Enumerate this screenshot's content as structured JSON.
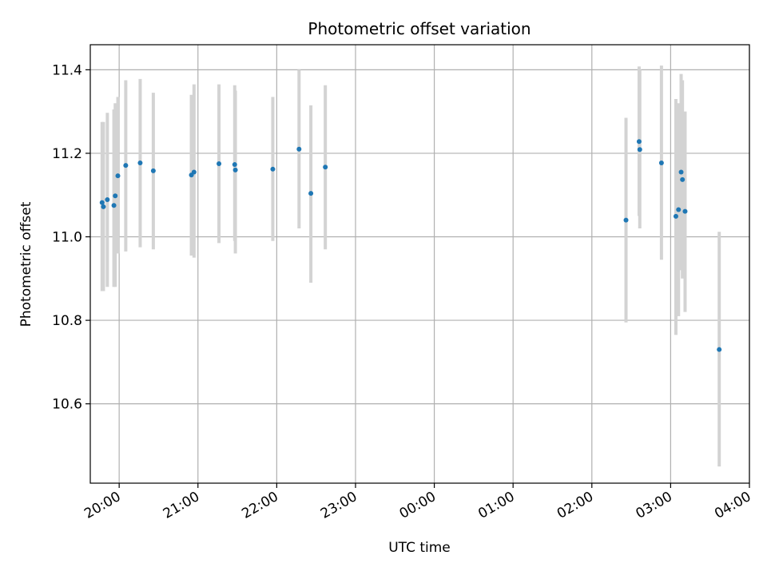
{
  "chart_data": {
    "type": "scatter",
    "title": "Photometric offset variation",
    "xlabel": "UTC time",
    "ylabel": "Photometric offset",
    "xlim": [
      "2024-01-01T19:38:00",
      "2024-01-02T04:00:00"
    ],
    "ylim": [
      10.41,
      11.46
    ],
    "x_ticks": [
      {
        "t": "2024-01-01T20:00:00",
        "label": "20:00"
      },
      {
        "t": "2024-01-01T21:00:00",
        "label": "21:00"
      },
      {
        "t": "2024-01-01T22:00:00",
        "label": "22:00"
      },
      {
        "t": "2024-01-01T23:00:00",
        "label": "23:00"
      },
      {
        "t": "2024-01-02T00:00:00",
        "label": "00:00"
      },
      {
        "t": "2024-01-02T01:00:00",
        "label": "01:00"
      },
      {
        "t": "2024-01-02T02:00:00",
        "label": "02:00"
      },
      {
        "t": "2024-01-02T03:00:00",
        "label": "03:00"
      },
      {
        "t": "2024-01-02T04:00:00",
        "label": "04:00"
      }
    ],
    "y_ticks": [
      {
        "v": 10.6,
        "label": "10.6"
      },
      {
        "v": 10.8,
        "label": "10.8"
      },
      {
        "v": 11.0,
        "label": "11.0"
      },
      {
        "v": 11.2,
        "label": "11.2"
      },
      {
        "v": 11.4,
        "label": "11.4"
      }
    ],
    "grid": true,
    "marker_color": "#1f77b4",
    "errorbar_color": "#d3d3d3",
    "points": [
      {
        "t": "2024-01-01T19:47:00",
        "y": 11.082,
        "low": 10.87,
        "high": 11.275
      },
      {
        "t": "2024-01-01T19:48:00",
        "y": 11.072,
        "low": 10.87,
        "high": 11.275
      },
      {
        "t": "2024-01-01T19:51:00",
        "y": 11.089,
        "low": 10.88,
        "high": 11.297
      },
      {
        "t": "2024-01-01T19:56:00",
        "y": 11.075,
        "low": 10.88,
        "high": 11.305
      },
      {
        "t": "2024-01-01T19:57:00",
        "y": 11.098,
        "low": 10.88,
        "high": 11.32
      },
      {
        "t": "2024-01-01T19:59:00",
        "y": 11.146,
        "low": 10.96,
        "high": 11.335
      },
      {
        "t": "2024-01-01T20:05:00",
        "y": 11.171,
        "low": 10.965,
        "high": 11.375
      },
      {
        "t": "2024-01-01T20:16:00",
        "y": 11.177,
        "low": 10.975,
        "high": 11.378
      },
      {
        "t": "2024-01-01T20:26:00",
        "y": 11.158,
        "low": 10.97,
        "high": 11.345
      },
      {
        "t": "2024-01-01T20:55:00",
        "y": 11.148,
        "low": 10.955,
        "high": 11.34
      },
      {
        "t": "2024-01-01T20:57:00",
        "y": 11.155,
        "low": 10.95,
        "high": 11.365
      },
      {
        "t": "2024-01-01T21:16:00",
        "y": 11.175,
        "low": 10.985,
        "high": 11.365
      },
      {
        "t": "2024-01-01T21:28:00",
        "y": 11.173,
        "low": 10.99,
        "high": 11.363
      },
      {
        "t": "2024-01-01T21:28:30",
        "y": 11.16,
        "low": 10.96,
        "high": 11.35
      },
      {
        "t": "2024-01-01T21:57:00",
        "y": 11.162,
        "low": 10.99,
        "high": 11.335
      },
      {
        "t": "2024-01-01T22:17:00",
        "y": 11.21,
        "low": 11.02,
        "high": 11.4
      },
      {
        "t": "2024-01-01T22:26:00",
        "y": 11.104,
        "low": 10.89,
        "high": 11.315
      },
      {
        "t": "2024-01-01T22:37:00",
        "y": 11.167,
        "low": 10.97,
        "high": 11.363
      },
      {
        "t": "2024-01-02T02:26:00",
        "y": 11.04,
        "low": 10.795,
        "high": 11.285
      },
      {
        "t": "2024-01-02T02:36:00",
        "y": 11.228,
        "low": 11.05,
        "high": 11.408
      },
      {
        "t": "2024-01-02T02:36:30",
        "y": 11.209,
        "low": 11.02,
        "high": 11.4
      },
      {
        "t": "2024-01-02T02:53:00",
        "y": 11.177,
        "low": 10.945,
        "high": 11.41
      },
      {
        "t": "2024-01-02T03:04:00",
        "y": 11.049,
        "low": 10.765,
        "high": 11.33
      },
      {
        "t": "2024-01-02T03:06:00",
        "y": 11.065,
        "low": 10.81,
        "high": 11.32
      },
      {
        "t": "2024-01-02T03:08:00",
        "y": 11.155,
        "low": 10.92,
        "high": 11.39
      },
      {
        "t": "2024-01-02T03:09:00",
        "y": 11.137,
        "low": 10.9,
        "high": 11.375
      },
      {
        "t": "2024-01-02T03:11:00",
        "y": 11.061,
        "low": 10.82,
        "high": 11.3
      },
      {
        "t": "2024-01-02T03:37:00",
        "y": 10.73,
        "low": 10.45,
        "high": 11.012
      }
    ]
  }
}
